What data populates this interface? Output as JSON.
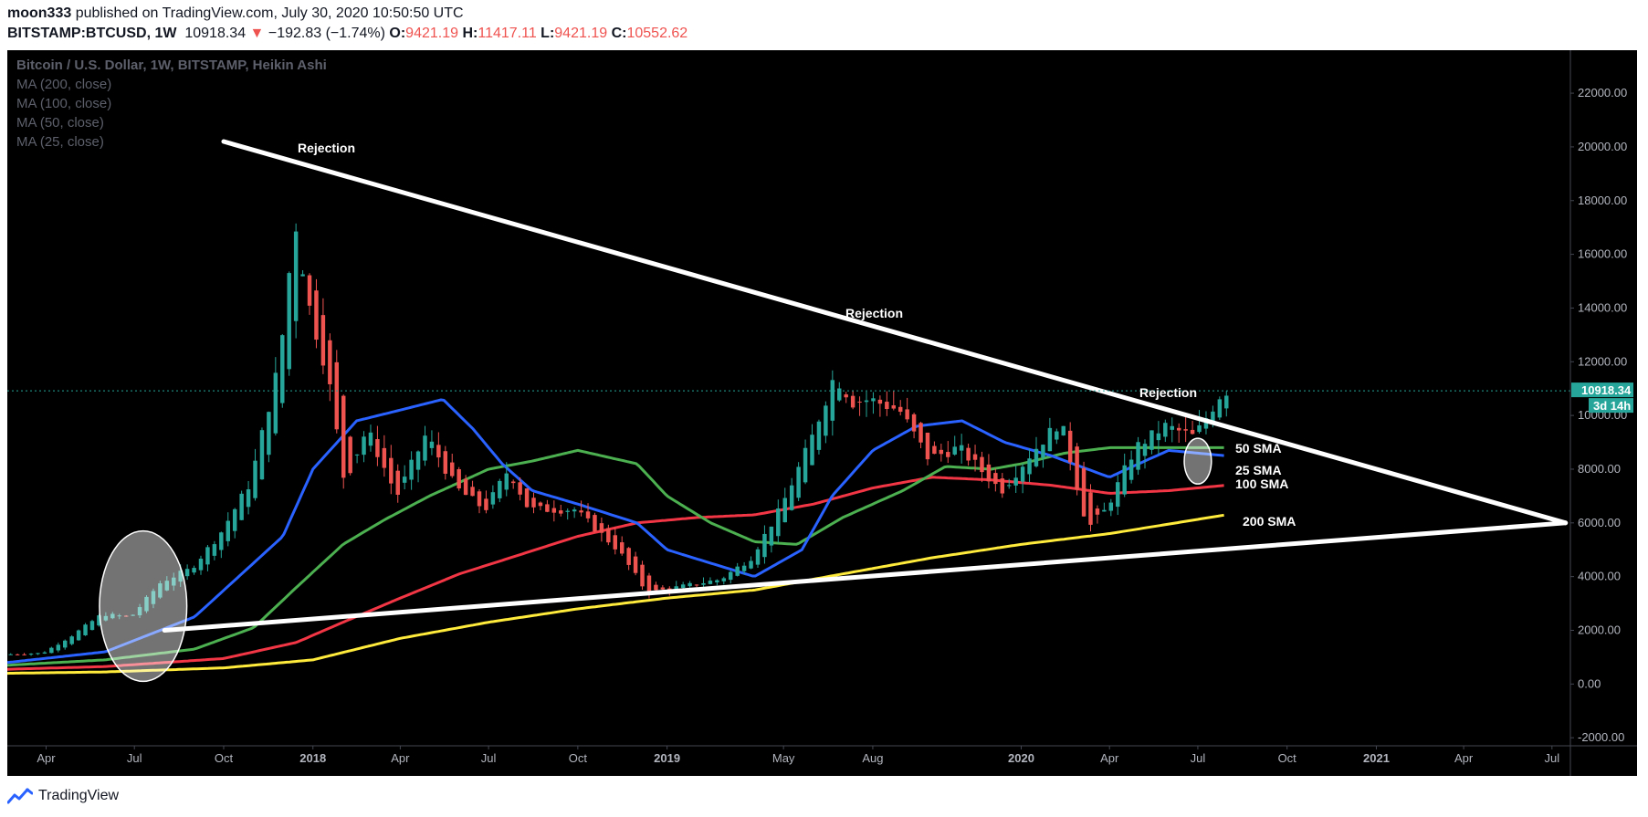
{
  "header": {
    "author": "moon333",
    "published_text": "published on TradingView.com, July 30, 2020 10:50:50 UTC",
    "symbol": "BITSTAMP:BTCUSD, 1W",
    "last": "10918.34",
    "change_arrow": "▼",
    "change": "−192.83 (−1.74%)",
    "o_label": "O:",
    "o_value": "9421.19",
    "h_label": "H:",
    "h_value": "11417.11",
    "l_label": "L:",
    "l_value": "9421.19",
    "c_label": "C:",
    "c_value": "10552.62"
  },
  "legend": {
    "title": "Bitcoin / U.S. Dollar, 1W, BITSTAMP, Heikin Ashi",
    "ma200": "MA (200, close)",
    "ma100": "MA (100, close)",
    "ma50": "MA (50, close)",
    "ma25": "MA (25, close)"
  },
  "annotations": {
    "rejection1": "Rejection",
    "rejection2": "Rejection",
    "rejection3": "Rejection",
    "sma50": "50 SMA",
    "sma25": "25 SMA",
    "sma100": "100 SMA",
    "sma200": "200 SMA"
  },
  "price_tags": {
    "last": "10918.34",
    "countdown": "3d 14h"
  },
  "footer": {
    "brand": "TradingView"
  },
  "colors": {
    "background": "#000000",
    "up": "#26a69a",
    "down": "#ef5350",
    "ma25": "#2962ff",
    "ma50": "#4caf50",
    "ma100": "#f23645",
    "ma200": "#ffeb3b",
    "trendline": "#ffffff",
    "axis_text": "#b2b5be"
  },
  "chart_data": {
    "type": "candlestick",
    "title": "Bitcoin / U.S. Dollar, 1W, BITSTAMP, Heikin Ashi",
    "y_ticks": [
      -2000,
      0,
      2000,
      4000,
      6000,
      8000,
      10000,
      12000,
      14000,
      16000,
      18000,
      20000,
      22000
    ],
    "ylim": [
      -2300,
      23600
    ],
    "x_ticks": [
      {
        "label": "Apr",
        "date": "2017-04-01"
      },
      {
        "label": "Jul",
        "date": "2017-07-01"
      },
      {
        "label": "Oct",
        "date": "2017-10-01"
      },
      {
        "label": "2018",
        "date": "2018-01-01"
      },
      {
        "label": "Apr",
        "date": "2018-04-01"
      },
      {
        "label": "Jul",
        "date": "2018-07-01"
      },
      {
        "label": "Oct",
        "date": "2018-10-01"
      },
      {
        "label": "2019",
        "date": "2019-01-01"
      },
      {
        "label": "May",
        "date": "2019-05-01"
      },
      {
        "label": "Aug",
        "date": "2019-08-01"
      },
      {
        "label": "2020",
        "date": "2020-01-01"
      },
      {
        "label": "Apr",
        "date": "2020-04-01"
      },
      {
        "label": "Jul",
        "date": "2020-07-01"
      },
      {
        "label": "Oct",
        "date": "2020-10-01"
      },
      {
        "label": "2021",
        "date": "2021-01-01"
      },
      {
        "label": "Apr",
        "date": "2021-04-01"
      },
      {
        "label": "Jul",
        "date": "2021-07-01"
      }
    ],
    "xlim": [
      "2017-02-20",
      "2021-07-20"
    ],
    "last_price": 10918.34,
    "price_path": [
      [
        "2017-02-20",
        1100
      ],
      [
        "2017-04-01",
        1150
      ],
      [
        "2017-05-01",
        1800
      ],
      [
        "2017-06-01",
        2600
      ],
      [
        "2017-07-01",
        2500
      ],
      [
        "2017-08-01",
        3800
      ],
      [
        "2017-09-01",
        4300
      ],
      [
        "2017-10-01",
        5600
      ],
      [
        "2017-11-01",
        7500
      ],
      [
        "2017-12-01",
        12000
      ],
      [
        "2017-12-17",
        17300
      ],
      [
        "2018-01-01",
        14000
      ],
      [
        "2018-01-20",
        11500
      ],
      [
        "2018-02-06",
        7500
      ],
      [
        "2018-03-01",
        9500
      ],
      [
        "2018-04-01",
        7000
      ],
      [
        "2018-05-01",
        9300
      ],
      [
        "2018-06-01",
        7300
      ],
      [
        "2018-07-01",
        6500
      ],
      [
        "2018-07-25",
        8000
      ],
      [
        "2018-08-15",
        6500
      ],
      [
        "2018-10-01",
        6500
      ],
      [
        "2018-11-15",
        5000
      ],
      [
        "2018-12-15",
        3400
      ],
      [
        "2019-01-15",
        3600
      ],
      [
        "2019-03-01",
        3900
      ],
      [
        "2019-04-01",
        4700
      ],
      [
        "2019-05-01",
        6500
      ],
      [
        "2019-06-01",
        9000
      ],
      [
        "2019-06-26",
        11500
      ],
      [
        "2019-07-15",
        10500
      ],
      [
        "2019-08-01",
        10600
      ],
      [
        "2019-09-01",
        10200
      ],
      [
        "2019-10-01",
        8400
      ],
      [
        "2019-11-01",
        8800
      ],
      [
        "2019-12-15",
        7200
      ],
      [
        "2020-01-15",
        8600
      ],
      [
        "2020-02-14",
        9800
      ],
      [
        "2020-03-13",
        5800
      ],
      [
        "2020-04-01",
        6500
      ],
      [
        "2020-05-01",
        8800
      ],
      [
        "2020-06-01",
        9600
      ],
      [
        "2020-07-01",
        9200
      ],
      [
        "2020-07-30",
        10918
      ]
    ],
    "series": [
      {
        "name": "MA (25, close)",
        "values": [
          [
            "2017-02-20",
            800
          ],
          [
            "2017-06-01",
            1200
          ],
          [
            "2017-09-01",
            2500
          ],
          [
            "2017-12-01",
            5500
          ],
          [
            "2018-01-01",
            8000
          ],
          [
            "2018-02-15",
            9800
          ],
          [
            "2018-04-01",
            10200
          ],
          [
            "2018-05-15",
            10600
          ],
          [
            "2018-06-15",
            9500
          ],
          [
            "2018-07-15",
            8200
          ],
          [
            "2018-08-15",
            7200
          ],
          [
            "2018-10-01",
            6700
          ],
          [
            "2018-12-01",
            6000
          ],
          [
            "2019-01-01",
            5000
          ],
          [
            "2019-04-01",
            4000
          ],
          [
            "2019-05-20",
            5000
          ],
          [
            "2019-06-20",
            7000
          ],
          [
            "2019-08-01",
            8700
          ],
          [
            "2019-09-15",
            9600
          ],
          [
            "2019-11-01",
            9800
          ],
          [
            "2019-12-15",
            9000
          ],
          [
            "2020-02-01",
            8500
          ],
          [
            "2020-04-01",
            7700
          ],
          [
            "2020-05-01",
            8200
          ],
          [
            "2020-06-01",
            8700
          ],
          [
            "2020-07-30",
            8500
          ]
        ]
      },
      {
        "name": "MA (50, close)",
        "values": [
          [
            "2017-02-20",
            700
          ],
          [
            "2017-06-01",
            900
          ],
          [
            "2017-09-01",
            1300
          ],
          [
            "2017-11-01",
            2100
          ],
          [
            "2017-12-15",
            3600
          ],
          [
            "2018-02-01",
            5200
          ],
          [
            "2018-03-15",
            6100
          ],
          [
            "2018-05-01",
            7000
          ],
          [
            "2018-07-01",
            8000
          ],
          [
            "2018-08-15",
            8300
          ],
          [
            "2018-10-01",
            8700
          ],
          [
            "2018-12-01",
            8200
          ],
          [
            "2019-01-01",
            7000
          ],
          [
            "2019-02-15",
            6000
          ],
          [
            "2019-04-01",
            5300
          ],
          [
            "2019-05-15",
            5200
          ],
          [
            "2019-07-01",
            6200
          ],
          [
            "2019-09-01",
            7200
          ],
          [
            "2019-10-15",
            8100
          ],
          [
            "2019-12-01",
            8000
          ],
          [
            "2020-01-01",
            8200
          ],
          [
            "2020-02-15",
            8600
          ],
          [
            "2020-04-01",
            8800
          ],
          [
            "2020-06-01",
            8800
          ],
          [
            "2020-07-30",
            8800
          ]
        ]
      },
      {
        "name": "MA (100, close)",
        "values": [
          [
            "2017-02-20",
            550
          ],
          [
            "2017-06-01",
            650
          ],
          [
            "2017-10-01",
            950
          ],
          [
            "2017-12-15",
            1550
          ],
          [
            "2018-02-01",
            2300
          ],
          [
            "2018-04-01",
            3200
          ],
          [
            "2018-06-01",
            4100
          ],
          [
            "2018-08-01",
            4800
          ],
          [
            "2018-10-01",
            5500
          ],
          [
            "2018-12-01",
            6000
          ],
          [
            "2019-02-01",
            6200
          ],
          [
            "2019-04-01",
            6300
          ],
          [
            "2019-06-01",
            6700
          ],
          [
            "2019-08-01",
            7300
          ],
          [
            "2019-10-01",
            7700
          ],
          [
            "2019-12-01",
            7600
          ],
          [
            "2020-02-01",
            7400
          ],
          [
            "2020-04-01",
            7100
          ],
          [
            "2020-06-01",
            7200
          ],
          [
            "2020-07-30",
            7400
          ]
        ]
      },
      {
        "name": "MA (200, close)",
        "values": [
          [
            "2017-02-20",
            400
          ],
          [
            "2017-06-01",
            450
          ],
          [
            "2017-10-01",
            600
          ],
          [
            "2018-01-01",
            900
          ],
          [
            "2018-04-01",
            1700
          ],
          [
            "2018-07-01",
            2300
          ],
          [
            "2018-10-01",
            2800
          ],
          [
            "2019-01-01",
            3200
          ],
          [
            "2019-04-01",
            3500
          ],
          [
            "2019-07-01",
            4100
          ],
          [
            "2019-10-01",
            4700
          ],
          [
            "2020-01-01",
            5200
          ],
          [
            "2020-04-01",
            5600
          ],
          [
            "2020-07-30",
            6300
          ]
        ]
      }
    ],
    "trendlines": [
      {
        "from": [
          "2017-10-01",
          20200
        ],
        "to": [
          "2021-07-15",
          6000
        ]
      },
      {
        "from": [
          "2017-08-01",
          2000
        ],
        "to": [
          "2021-07-15",
          6000
        ]
      }
    ],
    "highlights": [
      {
        "center": [
          "2017-07-10",
          2900
        ],
        "rx_days": 45,
        "ry_price": 2800
      },
      {
        "center": [
          "2020-07-01",
          8300
        ],
        "rx_days": 14,
        "ry_price": 850
      }
    ]
  }
}
